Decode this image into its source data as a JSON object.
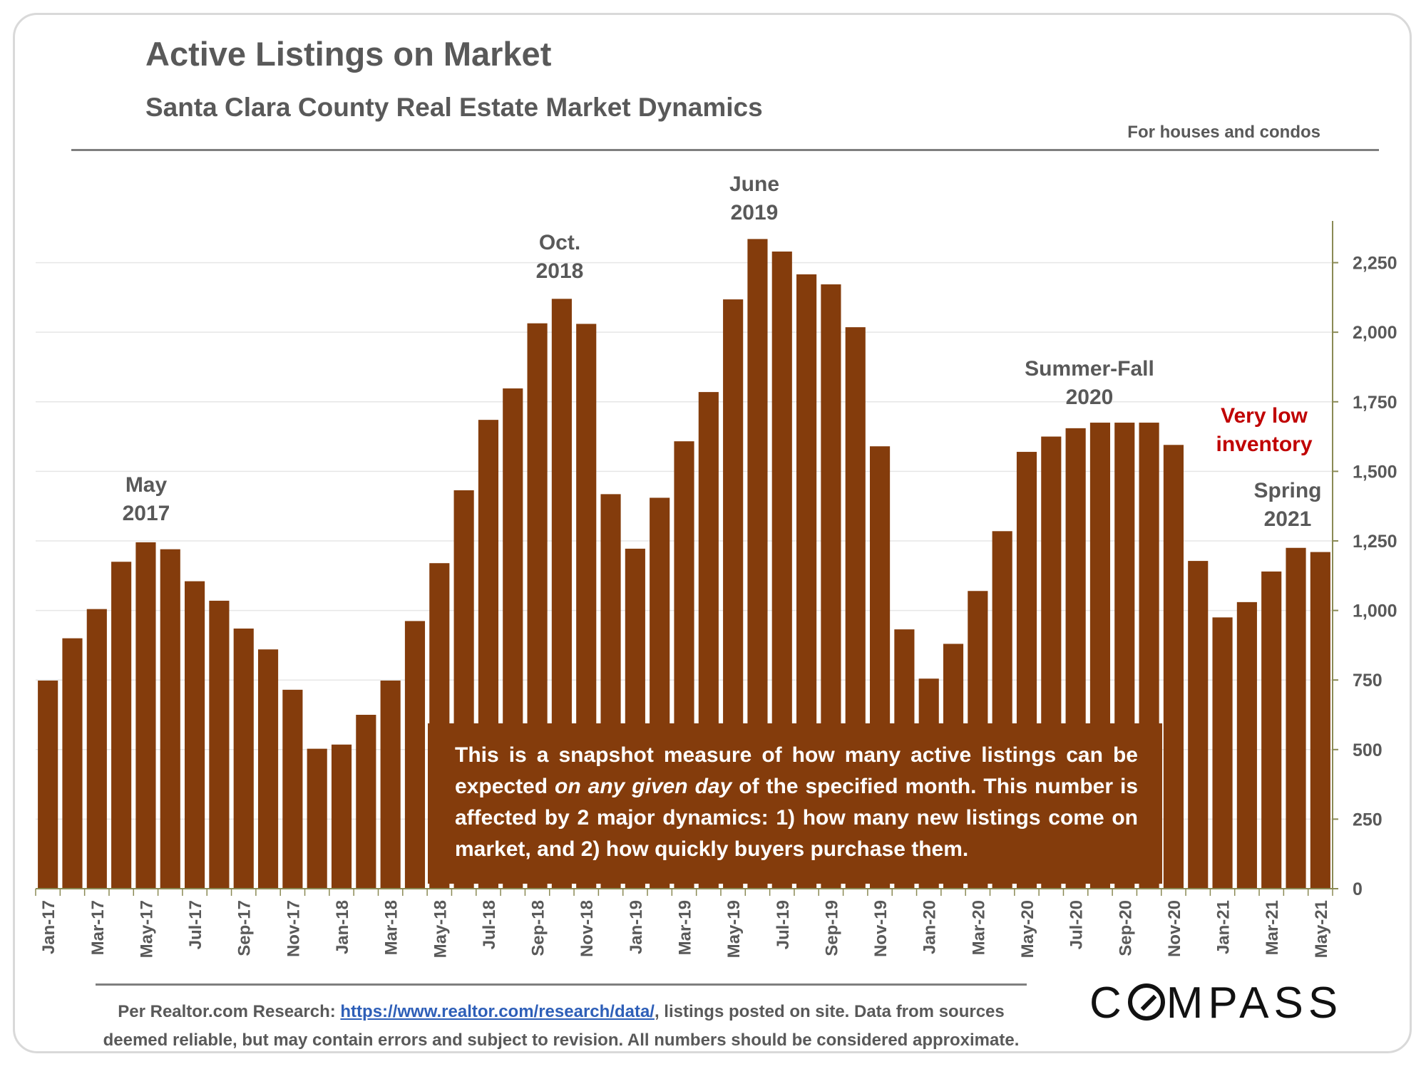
{
  "header": {
    "title": "Active Listings on Market",
    "subtitle": "Santa Clara County Real Estate Market Dynamics",
    "note": "For houses and condos"
  },
  "infobox": {
    "part1": "This is a snapshot measure of how many active listings can be expected ",
    "emphasis": "on any given day",
    "part2": " of the specified month. This number is affected by 2 major dynamics: 1) how many new listings come on market, and 2) how quickly buyers purchase them."
  },
  "footer": {
    "prefix": "Per Realtor.com Research: ",
    "link": "https://www.realtor.com/research/data/",
    "suffix": ", listings posted on site. Data from sources deemed reliable, but may contain errors and subject to revision. All numbers should be considered approximate."
  },
  "logo": {
    "text_before": "C",
    "text_after": "MPASS"
  },
  "colors": {
    "bar": "#843c0c",
    "text": "#595959",
    "highlight": "#c00000",
    "axis": "#8a8a55"
  },
  "chart_data": {
    "type": "bar",
    "title": "Active Listings on Market",
    "ylim": [
      0,
      2400
    ],
    "y_ticks": [
      0,
      250,
      500,
      750,
      1000,
      1250,
      1500,
      1750,
      2000,
      2250
    ],
    "y_tick_labels": [
      "0",
      "250",
      "500",
      "750",
      "1,000",
      "1,250",
      "1,500",
      "1,750",
      "2,000",
      "2,250"
    ],
    "y_axis_side": "right",
    "grid": true,
    "categories": [
      "Jan-17",
      "Feb-17",
      "Mar-17",
      "Apr-17",
      "May-17",
      "Jun-17",
      "Jul-17",
      "Aug-17",
      "Sep-17",
      "Oct-17",
      "Nov-17",
      "Dec-17",
      "Jan-18",
      "Feb-18",
      "Mar-18",
      "Apr-18",
      "May-18",
      "Jun-18",
      "Jul-18",
      "Aug-18",
      "Sep-18",
      "Oct-18",
      "Nov-18",
      "Dec-18",
      "Jan-19",
      "Feb-19",
      "Mar-19",
      "Apr-19",
      "May-19",
      "Jun-19",
      "Jul-19",
      "Aug-19",
      "Sep-19",
      "Oct-19",
      "Nov-19",
      "Dec-19",
      "Jan-20",
      "Feb-20",
      "Mar-20",
      "Apr-20",
      "May-20",
      "Jun-20",
      "Jul-20",
      "Aug-20",
      "Sep-20",
      "Oct-20",
      "Nov-20",
      "Dec-20",
      "Jan-21",
      "Feb-21",
      "Mar-21",
      "Apr-21",
      "May-21"
    ],
    "x_tick_labels_shown": [
      "Jan-17",
      "Mar-17",
      "May-17",
      "Jul-17",
      "Sep-17",
      "Nov-17",
      "Jan-18",
      "Mar-18",
      "May-18",
      "Jul-18",
      "Sep-18",
      "Nov-18",
      "Jan-19",
      "Mar-19",
      "May-19",
      "Jul-19",
      "Sep-19",
      "Nov-19",
      "Jan-20",
      "Mar-20",
      "May-20",
      "Jul-20",
      "Sep-20",
      "Nov-20",
      "Jan-21",
      "Mar-21",
      "May-21"
    ],
    "values": [
      748,
      900,
      1005,
      1175,
      1245,
      1220,
      1105,
      1035,
      935,
      860,
      715,
      503,
      518,
      625,
      748,
      962,
      1170,
      1432,
      1685,
      1798,
      2032,
      2120,
      2030,
      1418,
      1222,
      1405,
      1608,
      1785,
      2118,
      2335,
      2290,
      2208,
      2172,
      2018,
      1590,
      932,
      755,
      880,
      1070,
      1285,
      1570,
      1625,
      1655,
      1675,
      1675,
      1675,
      1595,
      1178,
      975,
      1030,
      1140,
      1225,
      1210
    ],
    "annotations": [
      {
        "label": "May\n2017",
        "index": 4,
        "color": "#595959"
      },
      {
        "label": "Oct.\n2018",
        "index": 21,
        "color": "#595959"
      },
      {
        "label": "June\n2019",
        "index": 29,
        "color": "#595959"
      },
      {
        "label": "Summer-Fall\n2020",
        "index": 43,
        "color": "#595959"
      },
      {
        "label": "Very low\ninventory",
        "index": 49,
        "color": "#c00000"
      },
      {
        "label": "Spring\n2021",
        "index": 51,
        "color": "#595959"
      }
    ]
  }
}
